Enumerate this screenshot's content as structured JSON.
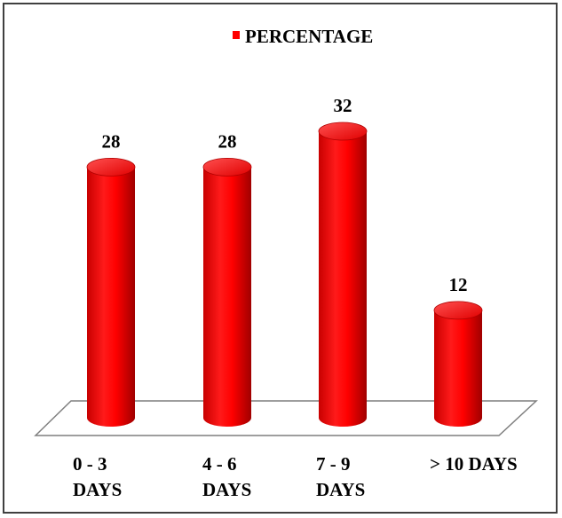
{
  "chart_data": {
    "type": "bar",
    "categories": [
      [
        "0 - 3",
        "DAYS"
      ],
      [
        "4 - 6",
        "DAYS"
      ],
      [
        "7 - 9",
        "DAYS"
      ],
      [
        "> 10 DAYS"
      ]
    ],
    "series": [
      {
        "name": "PERCENTAGE",
        "values": [
          28,
          28,
          32,
          12
        ]
      }
    ],
    "data_labels": [
      "28",
      "28",
      "32",
      "12"
    ],
    "ylim": [
      0,
      32
    ],
    "legend_position": "top",
    "grid": false,
    "bar_style": "3d-cylinder",
    "colors": {
      "bar": "#ff0000",
      "bar_dark": "#b00000",
      "bar_light": "#ff6a6a",
      "floor_stroke": "#7f7f7f",
      "frame": "#404040"
    }
  }
}
